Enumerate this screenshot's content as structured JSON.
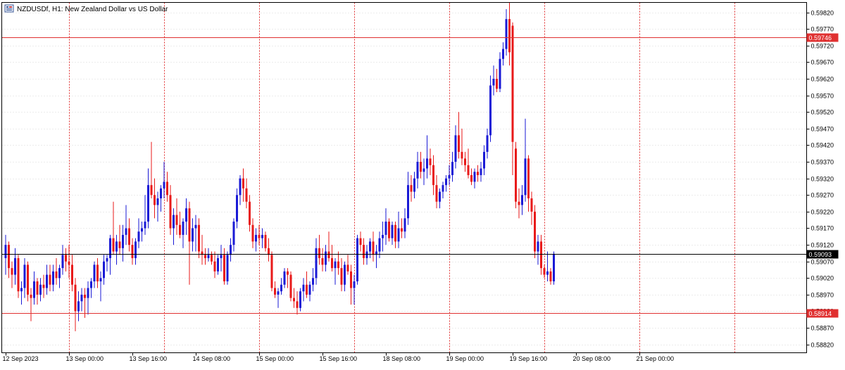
{
  "window": {
    "icon": "chart-window-icon",
    "title": "NZDUSDf, H1:  New Zealand Dollar vs US Dollar"
  },
  "colors": {
    "bull": "#1a1ad6",
    "bear": "#e81a1a",
    "grid": "#d8d8d8",
    "day_separator": "#e03030",
    "hline": "#e03030",
    "price_line": "#000000"
  },
  "chart_data": {
    "type": "candlestick",
    "symbol": "NZDUSDf",
    "timeframe": "H1",
    "y_range": [
      0.58795,
      0.5985
    ],
    "y_ticks": [
      "0.59820",
      "0.59770",
      "0.59720",
      "0.59670",
      "0.59620",
      "0.59570",
      "0.59520",
      "0.59470",
      "0.59420",
      "0.59370",
      "0.59320",
      "0.59270",
      "0.59220",
      "0.59170",
      "0.59120",
      "0.59070",
      "0.59020",
      "0.58970",
      "0.58920",
      "0.58870",
      "0.58820"
    ],
    "x_labels": [
      {
        "label": "12 Sep 2023",
        "bar": 0
      },
      {
        "label": "13 Sep 00:00",
        "bar": 20
      },
      {
        "label": "13 Sep 16:00",
        "bar": 40
      },
      {
        "label": "14 Sep 08:00",
        "bar": 60
      },
      {
        "label": "15 Sep 00:00",
        "bar": 80
      },
      {
        "label": "15 Sep 16:00",
        "bar": 100
      },
      {
        "label": "18 Sep 08:00",
        "bar": 120
      },
      {
        "label": "19 Sep 00:00",
        "bar": 140
      },
      {
        "label": "19 Sep 16:00",
        "bar": 160
      },
      {
        "label": "20 Sep 08:00",
        "bar": 180
      },
      {
        "label": "21 Sep 00:00",
        "bar": 200
      }
    ],
    "day_separators": [
      20,
      50,
      80,
      110,
      140,
      170,
      200,
      230
    ],
    "horizontal_lines": [
      {
        "price": 0.59746,
        "label": "0.59746",
        "kind": "level"
      },
      {
        "price": 0.58914,
        "label": "0.58914",
        "kind": "level"
      },
      {
        "price": 0.59093,
        "label": "0.59093",
        "kind": "current"
      }
    ],
    "candles": [
      [
        0.5908,
        0.5915,
        0.5903,
        0.5912
      ],
      [
        0.5912,
        0.5913,
        0.5902,
        0.5905
      ],
      [
        0.5905,
        0.5907,
        0.5899,
        0.5903
      ],
      [
        0.5903,
        0.5911,
        0.59,
        0.5908
      ],
      [
        0.5908,
        0.5909,
        0.5896,
        0.5898
      ],
      [
        0.5898,
        0.5901,
        0.5894,
        0.5899
      ],
      [
        0.5899,
        0.5908,
        0.5896,
        0.5906
      ],
      [
        0.5906,
        0.5907,
        0.5895,
        0.5897
      ],
      [
        0.5897,
        0.5899,
        0.5889,
        0.5896
      ],
      [
        0.5896,
        0.5904,
        0.5894,
        0.5901
      ],
      [
        0.5901,
        0.5902,
        0.5894,
        0.5897
      ],
      [
        0.5897,
        0.5902,
        0.5895,
        0.59
      ],
      [
        0.59,
        0.5903,
        0.5896,
        0.5899
      ],
      [
        0.5899,
        0.5906,
        0.5897,
        0.5903
      ],
      [
        0.5903,
        0.5906,
        0.5898,
        0.59
      ],
      [
        0.59,
        0.5906,
        0.5898,
        0.5904
      ],
      [
        0.5904,
        0.5908,
        0.59,
        0.5902
      ],
      [
        0.5902,
        0.5906,
        0.5899,
        0.5905
      ],
      [
        0.5905,
        0.5912,
        0.5903,
        0.5909
      ],
      [
        0.5909,
        0.5911,
        0.5904,
        0.5907
      ],
      [
        0.5907,
        0.5912,
        0.5902,
        0.5906
      ],
      [
        0.5906,
        0.5909,
        0.5898,
        0.59
      ],
      [
        0.59,
        0.5902,
        0.5886,
        0.5892
      ],
      [
        0.5892,
        0.5898,
        0.5889,
        0.5895
      ],
      [
        0.5895,
        0.5899,
        0.5892,
        0.5897
      ],
      [
        0.5897,
        0.5899,
        0.589,
        0.5896
      ],
      [
        0.5896,
        0.5901,
        0.5891,
        0.5899
      ],
      [
        0.5899,
        0.5902,
        0.5896,
        0.5901
      ],
      [
        0.5901,
        0.5907,
        0.5899,
        0.5906
      ],
      [
        0.5906,
        0.5908,
        0.5899,
        0.5901
      ],
      [
        0.5901,
        0.5904,
        0.5895,
        0.5902
      ],
      [
        0.5902,
        0.5909,
        0.59,
        0.5907
      ],
      [
        0.5907,
        0.5909,
        0.5904,
        0.5908
      ],
      [
        0.5908,
        0.5915,
        0.5903,
        0.5914
      ],
      [
        0.5914,
        0.5925,
        0.5909,
        0.591
      ],
      [
        0.591,
        0.5915,
        0.5906,
        0.5913
      ],
      [
        0.5913,
        0.5918,
        0.5909,
        0.5911
      ],
      [
        0.5911,
        0.5918,
        0.5907,
        0.5915
      ],
      [
        0.5915,
        0.5924,
        0.5912,
        0.5917
      ],
      [
        0.5917,
        0.592,
        0.591,
        0.5912
      ],
      [
        0.5912,
        0.5914,
        0.5906,
        0.5908
      ],
      [
        0.5908,
        0.5914,
        0.5906,
        0.5913
      ],
      [
        0.5913,
        0.592,
        0.5911,
        0.5916
      ],
      [
        0.5916,
        0.5919,
        0.5913,
        0.5917
      ],
      [
        0.5917,
        0.5927,
        0.5915,
        0.5919
      ],
      [
        0.5919,
        0.5935,
        0.5917,
        0.593
      ],
      [
        0.593,
        0.5943,
        0.5926,
        0.5927
      ],
      [
        0.5927,
        0.5932,
        0.592,
        0.5924
      ],
      [
        0.5924,
        0.5928,
        0.5919,
        0.5926
      ],
      [
        0.5926,
        0.593,
        0.5922,
        0.5929
      ],
      [
        0.5929,
        0.5937,
        0.5926,
        0.5931
      ],
      [
        0.5931,
        0.5934,
        0.5925,
        0.5927
      ],
      [
        0.5927,
        0.593,
        0.5915,
        0.5917
      ],
      [
        0.5917,
        0.5923,
        0.5912,
        0.5921
      ],
      [
        0.5921,
        0.5926,
        0.5915,
        0.5918
      ],
      [
        0.5918,
        0.5922,
        0.5914,
        0.5915
      ],
      [
        0.5915,
        0.592,
        0.5911,
        0.5919
      ],
      [
        0.5919,
        0.5926,
        0.5915,
        0.5923
      ],
      [
        0.5923,
        0.5925,
        0.59,
        0.5913
      ],
      [
        0.5913,
        0.592,
        0.591,
        0.5917
      ],
      [
        0.5917,
        0.5921,
        0.591,
        0.5918
      ],
      [
        0.5918,
        0.592,
        0.5908,
        0.591
      ],
      [
        0.591,
        0.5915,
        0.5906,
        0.5909
      ],
      [
        0.5909,
        0.5911,
        0.5906,
        0.5908
      ],
      [
        0.5908,
        0.5911,
        0.5907,
        0.5909
      ],
      [
        0.5909,
        0.591,
        0.5906,
        0.5907
      ],
      [
        0.5907,
        0.591,
        0.5902,
        0.5904
      ],
      [
        0.5904,
        0.5909,
        0.5903,
        0.5908
      ],
      [
        0.5908,
        0.5912,
        0.5904,
        0.5909
      ],
      [
        0.5909,
        0.5911,
        0.59,
        0.5901
      ],
      [
        0.5901,
        0.591,
        0.59,
        0.5909
      ],
      [
        0.5909,
        0.5914,
        0.5907,
        0.5912
      ],
      [
        0.5912,
        0.592,
        0.591,
        0.5919
      ],
      [
        0.5919,
        0.5929,
        0.5917,
        0.5927
      ],
      [
        0.5927,
        0.5933,
        0.5924,
        0.5932
      ],
      [
        0.5932,
        0.5935,
        0.5925,
        0.5929
      ],
      [
        0.5929,
        0.5932,
        0.5923,
        0.5925
      ],
      [
        0.5925,
        0.5927,
        0.5916,
        0.5918
      ],
      [
        0.5918,
        0.592,
        0.5911,
        0.5913
      ],
      [
        0.5913,
        0.5917,
        0.591,
        0.5915
      ],
      [
        0.5915,
        0.5918,
        0.5912,
        0.5914
      ],
      [
        0.5914,
        0.5917,
        0.5911,
        0.5915
      ],
      [
        0.5915,
        0.5916,
        0.591,
        0.5911
      ],
      [
        0.5911,
        0.5914,
        0.5907,
        0.5909
      ],
      [
        0.5909,
        0.591,
        0.5898,
        0.5899
      ],
      [
        0.5899,
        0.5901,
        0.5896,
        0.5897
      ],
      [
        0.5897,
        0.5899,
        0.5893,
        0.5898
      ],
      [
        0.5898,
        0.5902,
        0.5897,
        0.59
      ],
      [
        0.59,
        0.5905,
        0.5899,
        0.5904
      ],
      [
        0.5904,
        0.5905,
        0.5899,
        0.5903
      ],
      [
        0.5903,
        0.5904,
        0.5895,
        0.5896
      ],
      [
        0.5896,
        0.5899,
        0.5893,
        0.5895
      ],
      [
        0.5895,
        0.5898,
        0.5891,
        0.5893
      ],
      [
        0.5893,
        0.5899,
        0.5892,
        0.5898
      ],
      [
        0.5898,
        0.5902,
        0.5895,
        0.59
      ],
      [
        0.59,
        0.5904,
        0.5896,
        0.5897
      ],
      [
        0.5897,
        0.5901,
        0.5895,
        0.59
      ],
      [
        0.59,
        0.5905,
        0.5898,
        0.5902
      ],
      [
        0.5902,
        0.5914,
        0.59,
        0.5911
      ],
      [
        0.5911,
        0.5915,
        0.5906,
        0.5908
      ],
      [
        0.5908,
        0.5911,
        0.5904,
        0.5906
      ],
      [
        0.5906,
        0.5912,
        0.5904,
        0.591
      ],
      [
        0.591,
        0.5916,
        0.5907,
        0.5908
      ],
      [
        0.5908,
        0.5912,
        0.5904,
        0.5905
      ],
      [
        0.5905,
        0.5908,
        0.59,
        0.5907
      ],
      [
        0.5907,
        0.591,
        0.5903,
        0.5905
      ],
      [
        0.5905,
        0.5908,
        0.5898,
        0.59
      ],
      [
        0.59,
        0.5907,
        0.5898,
        0.5906
      ],
      [
        0.5906,
        0.5909,
        0.5903,
        0.5904
      ],
      [
        0.5904,
        0.5906,
        0.5894,
        0.5899
      ],
      [
        0.5899,
        0.5903,
        0.5894,
        0.5901
      ],
      [
        0.5901,
        0.5915,
        0.59,
        0.5914
      ],
      [
        0.5914,
        0.5916,
        0.591,
        0.5912
      ],
      [
        0.5912,
        0.5914,
        0.5906,
        0.5908
      ],
      [
        0.5908,
        0.5912,
        0.5906,
        0.591
      ],
      [
        0.591,
        0.5914,
        0.5908,
        0.5913
      ],
      [
        0.5913,
        0.5916,
        0.5907,
        0.5909
      ],
      [
        0.5909,
        0.5912,
        0.5905,
        0.591
      ],
      [
        0.591,
        0.5916,
        0.5908,
        0.5914
      ],
      [
        0.5914,
        0.5919,
        0.591,
        0.5915
      ],
      [
        0.5915,
        0.5923,
        0.5912,
        0.5919
      ],
      [
        0.5919,
        0.592,
        0.5913,
        0.5914
      ],
      [
        0.5914,
        0.5919,
        0.5912,
        0.5918
      ],
      [
        0.5918,
        0.5919,
        0.5911,
        0.5913
      ],
      [
        0.5913,
        0.5922,
        0.5911,
        0.5917
      ],
      [
        0.5917,
        0.592,
        0.5914,
        0.5916
      ],
      [
        0.5916,
        0.5923,
        0.5914,
        0.592
      ],
      [
        0.592,
        0.5934,
        0.5918,
        0.593
      ],
      [
        0.593,
        0.5933,
        0.5925,
        0.5928
      ],
      [
        0.5928,
        0.5934,
        0.5926,
        0.5932
      ],
      [
        0.5932,
        0.594,
        0.5929,
        0.5937
      ],
      [
        0.5937,
        0.594,
        0.5932,
        0.5934
      ],
      [
        0.5934,
        0.5938,
        0.593,
        0.5935
      ],
      [
        0.5935,
        0.5945,
        0.5932,
        0.5938
      ],
      [
        0.5938,
        0.5941,
        0.5933,
        0.5936
      ],
      [
        0.5936,
        0.5939,
        0.5927,
        0.593
      ],
      [
        0.593,
        0.5933,
        0.5923,
        0.5925
      ],
      [
        0.5925,
        0.5929,
        0.5923,
        0.5928
      ],
      [
        0.5928,
        0.5931,
        0.5926,
        0.593
      ],
      [
        0.593,
        0.5933,
        0.5928,
        0.5932
      ],
      [
        0.5932,
        0.5936,
        0.593,
        0.5933
      ],
      [
        0.5933,
        0.594,
        0.5931,
        0.5937
      ],
      [
        0.5937,
        0.5948,
        0.5935,
        0.5945
      ],
      [
        0.5945,
        0.5952,
        0.5938,
        0.594
      ],
      [
        0.594,
        0.5947,
        0.5936,
        0.5938
      ],
      [
        0.5938,
        0.594,
        0.5934,
        0.5936
      ],
      [
        0.5936,
        0.5941,
        0.5932,
        0.5933
      ],
      [
        0.5933,
        0.5935,
        0.593,
        0.5931
      ],
      [
        0.5931,
        0.5935,
        0.5929,
        0.5934
      ],
      [
        0.5934,
        0.5936,
        0.5931,
        0.5933
      ],
      [
        0.5933,
        0.5937,
        0.5931,
        0.5935
      ],
      [
        0.5935,
        0.5942,
        0.5933,
        0.594
      ],
      [
        0.594,
        0.5947,
        0.5938,
        0.5945
      ],
      [
        0.5945,
        0.5963,
        0.5943,
        0.596
      ],
      [
        0.596,
        0.5966,
        0.5957,
        0.5962
      ],
      [
        0.5962,
        0.5965,
        0.5958,
        0.5959
      ],
      [
        0.5959,
        0.597,
        0.5958,
        0.5968
      ],
      [
        0.5968,
        0.5973,
        0.5966,
        0.5971
      ],
      [
        0.5971,
        0.5983,
        0.5969,
        0.598
      ],
      [
        0.598,
        0.5985,
        0.5966,
        0.597
      ],
      [
        0.5978,
        0.5979,
        0.5933,
        0.5943
      ],
      [
        0.5941,
        0.5943,
        0.5923,
        0.5925
      ],
      [
        0.5925,
        0.5929,
        0.592,
        0.5924
      ],
      [
        0.5924,
        0.593,
        0.5921,
        0.5927
      ],
      [
        0.5927,
        0.595,
        0.5925,
        0.5938
      ],
      [
        0.5938,
        0.5939,
        0.5922,
        0.5926
      ],
      [
        0.5926,
        0.5928,
        0.5918,
        0.5922
      ],
      [
        0.5922,
        0.5924,
        0.5908,
        0.591
      ],
      [
        0.591,
        0.5915,
        0.5906,
        0.5913
      ],
      [
        0.5913,
        0.5915,
        0.5903,
        0.5905
      ],
      [
        0.5905,
        0.5906,
        0.5902,
        0.5903
      ],
      [
        0.5903,
        0.591,
        0.5901,
        0.5904
      ],
      [
        0.5904,
        0.5905,
        0.59,
        0.5901
      ],
      [
        0.5901,
        0.591,
        0.59,
        0.59093
      ]
    ]
  }
}
